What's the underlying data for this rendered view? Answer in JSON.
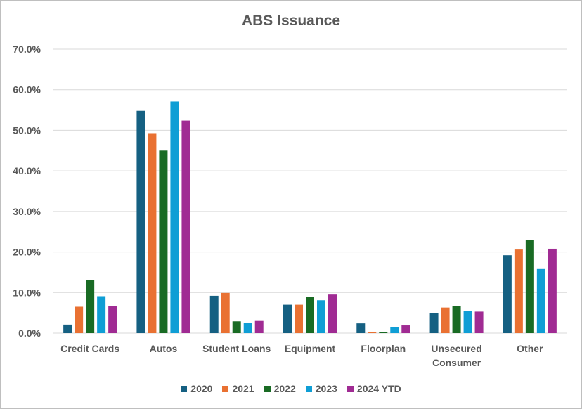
{
  "chart_data": {
    "type": "bar",
    "title": "ABS Issuance",
    "xlabel": "",
    "ylabel": "",
    "ylim": [
      0,
      70
    ],
    "yticks": [
      "0.0%",
      "10.0%",
      "20.0%",
      "30.0%",
      "40.0%",
      "50.0%",
      "60.0%",
      "70.0%"
    ],
    "grid": true,
    "legend_position": "bottom",
    "categories": [
      [
        "Credit Cards"
      ],
      [
        "Autos"
      ],
      [
        "Student Loans"
      ],
      [
        "Equipment"
      ],
      [
        "Floorplan"
      ],
      [
        "Unsecured",
        "Consumer"
      ],
      [
        "Other"
      ]
    ],
    "series": [
      {
        "name": "2020",
        "color": "#156082",
        "values": [
          2.1,
          54.8,
          9.2,
          7.0,
          2.4,
          4.9,
          19.2
        ]
      },
      {
        "name": "2021",
        "color": "#e97132",
        "values": [
          6.5,
          49.3,
          9.9,
          7.0,
          0.2,
          6.3,
          20.6
        ]
      },
      {
        "name": "2022",
        "color": "#196b24",
        "values": [
          13.1,
          45.0,
          2.9,
          8.9,
          0.3,
          6.7,
          22.9
        ]
      },
      {
        "name": "2023",
        "color": "#0f9ed5",
        "values": [
          9.1,
          57.1,
          2.6,
          8.1,
          1.5,
          5.5,
          15.8
        ]
      },
      {
        "name": "2024 YTD",
        "color": "#a02b93",
        "values": [
          6.7,
          52.4,
          3.0,
          9.5,
          1.9,
          5.3,
          20.8
        ]
      }
    ]
  }
}
